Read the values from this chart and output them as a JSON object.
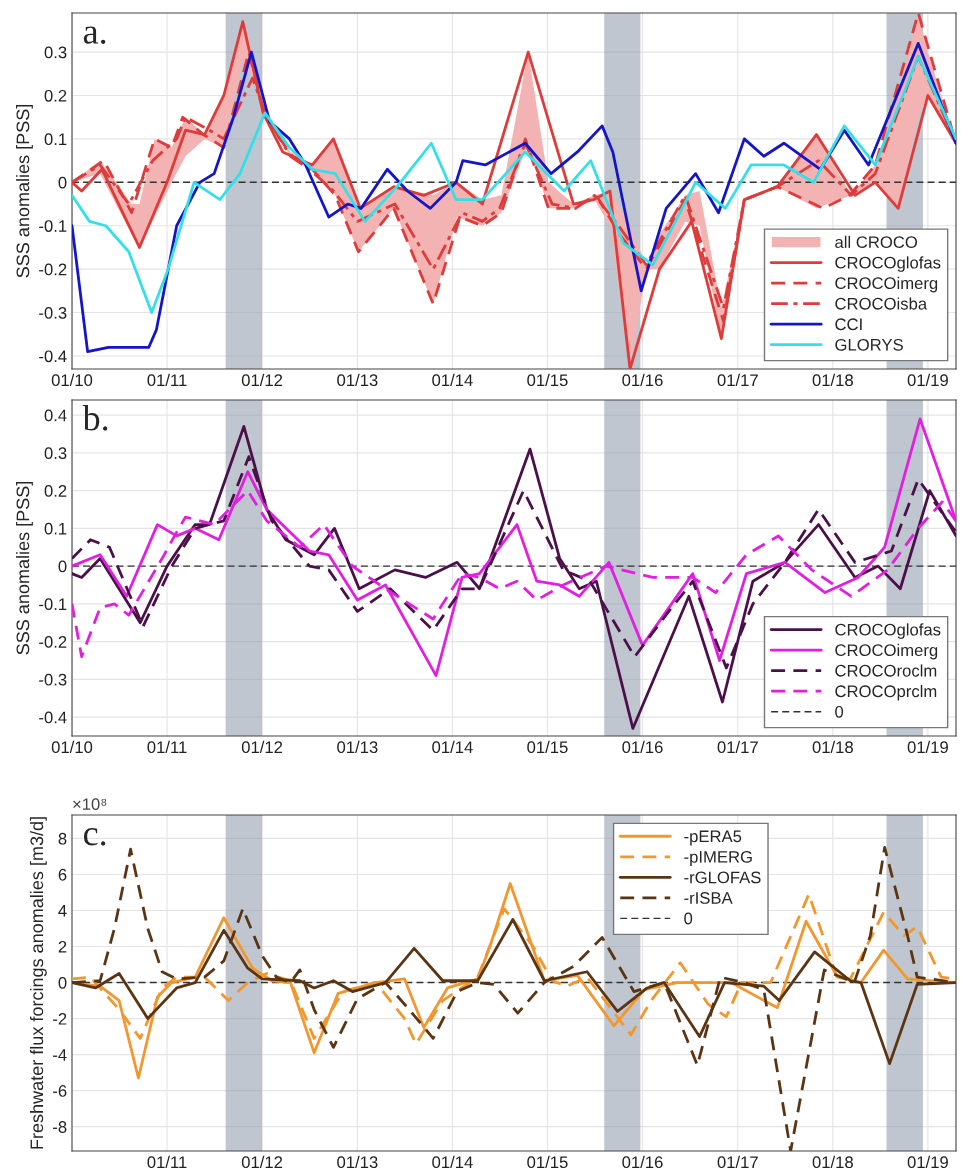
{
  "chart_data": [
    {
      "type": "line",
      "ylabel": "SSS anomalies [PSS]",
      "annotations": [
        "a."
      ],
      "xlim": [
        "2010-01-01",
        "2019-04-19"
      ],
      "ylim": [
        -0.43,
        0.39
      ],
      "xticks": [
        {
          "value": "2010-01-01",
          "label": "01/10"
        },
        {
          "value": "2011-01-01",
          "label": "01/11"
        },
        {
          "value": "2012-01-01",
          "label": "01/12"
        },
        {
          "value": "2013-01-01",
          "label": "01/13"
        },
        {
          "value": "2014-01-01",
          "label": "01/14"
        },
        {
          "value": "2015-01-01",
          "label": "01/15"
        },
        {
          "value": "2016-01-01",
          "label": "01/16"
        },
        {
          "value": "2017-01-01",
          "label": "01/17"
        },
        {
          "value": "2018-01-01",
          "label": "01/18"
        },
        {
          "value": "2019-01-01",
          "label": "01/19"
        }
      ],
      "yticks": [
        -0.4,
        -0.3,
        -0.2,
        -0.1,
        0,
        0.1,
        0.2,
        0.3
      ],
      "grid": true,
      "legend": "bottom right",
      "ref_lines": [
        {
          "axis": "y",
          "value": 0,
          "color": "#333333",
          "line_style": "dashed"
        }
      ],
      "bands": [
        {
          "axis": "x",
          "from": "2011-08-14",
          "to": "2012-01-01",
          "color": "#8c97a8"
        },
        {
          "axis": "x",
          "from": "2015-08-07",
          "to": "2015-12-24",
          "color": "#8c97a8"
        },
        {
          "axis": "x",
          "from": "2018-07-26",
          "to": "2018-12-13",
          "color": "#8c97a8"
        }
      ],
      "series": [
        {
          "name": "all CROCO",
          "color": "#f4b3b3",
          "values": [
            null,
            null,
            null,
            null,
            null,
            null,
            null,
            null,
            null,
            null,
            null,
            null,
            null,
            null,
            null,
            null,
            null,
            null,
            null,
            null,
            null,
            null,
            null,
            null,
            null,
            null,
            null,
            null,
            null,
            null,
            null,
            null,
            null,
            null,
            null,
            null,
            null,
            null,
            null,
            null,
            null
          ],
          "x": [
            "2010-01-01",
            "2010-04-19",
            "2010-08-18",
            "2010-09-17",
            "2010-11-14",
            "2011-01-19",
            "2011-03-13",
            "2011-05-25",
            "2011-08-07",
            "2011-10-19",
            "2011-11-25",
            "2012-01-12",
            "2012-04-19",
            "2012-07-12",
            "2012-10-01",
            "2013-01-05",
            "2013-05-21",
            "2013-10-19",
            "2014-01-19",
            "2014-04-26",
            "2014-07-08",
            "2014-10-19",
            "2015-01-05",
            "2015-04-11",
            "2015-07-01",
            "2015-08-29",
            "2015-11-14",
            "2016-01-15",
            "2016-03-06",
            "2016-06-13",
            "2016-08-07",
            "2016-10-30",
            "2017-01-26",
            "2017-06-02",
            "2017-10-30",
            "2018-03-13",
            "2018-06-13",
            "2018-09-09",
            "2018-11-25",
            "2019-01-01",
            "2019-04-19"
          ],
          "lower": [
            0.0,
            0.02,
            -0.12,
            -0.15,
            -0.08,
            0.0,
            0.06,
            0.1,
            0.08,
            0.28,
            0.24,
            0.15,
            0.06,
            0.03,
            -0.02,
            -0.16,
            -0.06,
            -0.28,
            -0.08,
            -0.1,
            -0.07,
            0.09,
            -0.06,
            -0.06,
            -0.04,
            -0.1,
            -0.43,
            -0.2,
            -0.2,
            -0.09,
            -0.1,
            -0.36,
            -0.04,
            -0.01,
            -0.06,
            -0.03,
            0.0,
            -0.06,
            0.15,
            0.2,
            0.09
          ],
          "upper": [
            0.0,
            0.05,
            -0.05,
            -0.05,
            0.1,
            0.08,
            0.15,
            0.11,
            0.2,
            0.37,
            0.3,
            0.16,
            0.07,
            0.04,
            0.1,
            -0.06,
            -0.01,
            -0.03,
            0.0,
            -0.04,
            -0.03,
            0.3,
            0.0,
            -0.05,
            -0.03,
            -0.02,
            -0.1,
            -0.19,
            -0.12,
            -0.03,
            -0.02,
            -0.29,
            -0.04,
            -0.01,
            0.11,
            -0.03,
            0.04,
            0.2,
            0.39,
            0.3,
            0.09
          ]
        },
        {
          "name": "CROCOglofas",
          "color": "#de3b3b",
          "line_style": "solid",
          "x": [
            "2010-01-01",
            "2010-02-07",
            "2010-04-26",
            "2010-09-17",
            "2011-01-01",
            "2011-03-13",
            "2011-05-25",
            "2011-08-07",
            "2011-10-19",
            "2012-01-05",
            "2012-03-20",
            "2012-07-12",
            "2012-10-01",
            "2013-01-12",
            "2013-05-21",
            "2013-09-13",
            "2014-01-15",
            "2014-04-26",
            "2014-10-19",
            "2015-04-11",
            "2015-06-27",
            "2015-08-29",
            "2015-11-14",
            "2016-03-06",
            "2016-07-08",
            "2016-10-30",
            "2017-01-26",
            "2017-06-02",
            "2017-10-30",
            "2018-03-27",
            "2018-06-13",
            "2018-09-09",
            "2019-01-01",
            "2019-04-19"
          ],
          "values": [
            0.0,
            -0.02,
            0.03,
            -0.15,
            0.0,
            0.12,
            0.11,
            0.2,
            0.37,
            0.16,
            0.07,
            0.04,
            0.1,
            -0.06,
            -0.01,
            -0.03,
            0.0,
            -0.05,
            0.3,
            -0.05,
            -0.04,
            -0.02,
            -0.43,
            -0.2,
            -0.09,
            -0.36,
            -0.04,
            -0.01,
            0.11,
            -0.03,
            0.0,
            -0.06,
            0.2,
            0.09
          ]
        },
        {
          "name": "CROCOimerg",
          "color": "#de3b3b",
          "line_style": "dashed",
          "x": [
            "2010-01-01",
            "2010-05-03",
            "2010-08-18",
            "2010-11-14",
            "2011-01-19",
            "2011-03-02",
            "2011-05-21",
            "2011-08-07",
            "2011-11-11",
            "2012-01-12",
            "2012-04-26",
            "2012-07-12",
            "2012-10-08",
            "2013-01-05",
            "2013-05-21",
            "2013-10-19",
            "2014-01-30",
            "2014-04-26",
            "2014-07-08",
            "2014-10-08",
            "2015-01-05",
            "2015-04-11",
            "2015-07-08",
            "2015-10-05",
            "2016-01-15",
            "2016-06-13",
            "2016-11-07",
            "2017-01-26",
            "2017-06-02",
            "2017-11-25",
            "2018-03-06",
            "2018-06-13",
            "2018-11-25",
            "2019-04-19"
          ],
          "values": [
            0.0,
            0.05,
            -0.07,
            0.1,
            0.08,
            0.15,
            0.11,
            0.08,
            0.3,
            0.15,
            0.06,
            0.03,
            -0.03,
            -0.16,
            -0.06,
            -0.28,
            -0.08,
            -0.1,
            -0.07,
            0.1,
            -0.06,
            -0.06,
            -0.03,
            -0.12,
            -0.2,
            -0.04,
            -0.32,
            -0.04,
            -0.01,
            -0.06,
            -0.03,
            0.04,
            0.39,
            0.09
          ]
        },
        {
          "name": "CROCOisba",
          "color": "#de3b3b",
          "line_style": "dashdot",
          "x": [
            "2010-01-01",
            "2010-04-19",
            "2010-08-07",
            "2010-11-07",
            "2011-02-07",
            "2011-03-13",
            "2011-06-13",
            "2011-08-07",
            "2011-11-25",
            "2012-01-19",
            "2012-04-19",
            "2012-07-01",
            "2012-10-01",
            "2013-01-01",
            "2013-05-25",
            "2013-10-19",
            "2014-02-07",
            "2014-04-26",
            "2014-07-01",
            "2014-10-08",
            "2015-01-19",
            "2015-04-19",
            "2015-07-01",
            "2015-10-01",
            "2016-01-15",
            "2016-06-13",
            "2016-11-07",
            "2017-01-26",
            "2017-06-02",
            "2017-11-07",
            "2018-03-13",
            "2018-06-13",
            "2018-11-25",
            "2019-04-19"
          ],
          "values": [
            0.0,
            0.04,
            -0.05,
            0.05,
            0.1,
            0.15,
            0.12,
            0.1,
            0.24,
            0.15,
            0.06,
            0.03,
            -0.02,
            -0.09,
            -0.05,
            -0.2,
            -0.07,
            -0.09,
            -0.06,
            0.09,
            -0.05,
            -0.06,
            -0.03,
            -0.1,
            -0.19,
            -0.03,
            -0.29,
            -0.04,
            -0.01,
            0.05,
            -0.03,
            0.02,
            0.29,
            0.09
          ]
        },
        {
          "name": "CCI",
          "color": "#1414c8",
          "line_style": "solid",
          "x": [
            "2010-01-01",
            "2010-03-02",
            "2010-05-21",
            "2010-10-23",
            "2010-11-21",
            "2011-02-07",
            "2011-05-07",
            "2011-07-01",
            "2011-09-13",
            "2011-11-21",
            "2012-01-30",
            "2012-04-15",
            "2012-06-16",
            "2012-09-13",
            "2012-11-25",
            "2013-01-15",
            "2013-04-26",
            "2013-07-12",
            "2013-10-08",
            "2014-01-15",
            "2014-02-10",
            "2014-05-07",
            "2014-10-08",
            "2015-01-15",
            "2015-04-26",
            "2015-07-30",
            "2015-09-09",
            "2015-12-27",
            "2016-04-01",
            "2016-07-23",
            "2016-10-19",
            "2017-01-26",
            "2017-04-11",
            "2017-06-27",
            "2017-11-14",
            "2018-02-14",
            "2018-05-18",
            "2018-11-25",
            "2019-04-19"
          ],
          "values": [
            -0.1,
            -0.39,
            -0.38,
            -0.38,
            -0.34,
            -0.1,
            0.0,
            0.02,
            0.15,
            0.3,
            0.14,
            0.1,
            0.04,
            -0.08,
            -0.05,
            -0.06,
            0.03,
            -0.02,
            -0.06,
            0.0,
            0.05,
            0.04,
            0.09,
            0.02,
            0.07,
            0.13,
            0.07,
            -0.25,
            -0.06,
            0.02,
            -0.07,
            0.1,
            0.06,
            0.09,
            0.03,
            0.12,
            0.04,
            0.32,
            0.09
          ]
        },
        {
          "name": "GLORYS",
          "color": "#33e0e8",
          "line_style": "solid",
          "x": [
            "2010-01-01",
            "2010-03-09",
            "2010-05-11",
            "2010-08-07",
            "2010-11-03",
            "2011-01-05",
            "2011-04-15",
            "2011-07-23",
            "2011-10-08",
            "2012-01-12",
            "2012-04-15",
            "2012-07-12",
            "2012-10-08",
            "2013-01-30",
            "2013-06-02",
            "2013-10-12",
            "2014-01-15",
            "2014-04-26",
            "2014-10-08",
            "2015-03-06",
            "2015-06-16",
            "2015-10-19",
            "2016-02-10",
            "2016-07-23",
            "2016-11-14",
            "2017-02-21",
            "2017-06-27",
            "2017-10-19",
            "2018-02-14",
            "2018-06-13",
            "2018-11-25",
            "2019-04-19"
          ],
          "values": [
            -0.03,
            -0.09,
            -0.1,
            -0.16,
            -0.3,
            -0.2,
            0.0,
            -0.04,
            0.02,
            0.16,
            0.08,
            0.03,
            0.02,
            -0.09,
            -0.01,
            0.09,
            -0.04,
            -0.04,
            0.07,
            -0.02,
            0.05,
            -0.14,
            -0.19,
            0.0,
            -0.06,
            0.04,
            0.04,
            0.0,
            0.13,
            0.04,
            0.29,
            0.1
          ]
        }
      ]
    },
    {
      "type": "line",
      "ylabel": "SSS anomalies [PSS]",
      "annotations": [
        "b."
      ],
      "xlim": [
        "2010-01-01",
        "2019-04-19"
      ],
      "ylim": [
        -0.45,
        0.44
      ],
      "xticks": [
        {
          "value": "2010-01-01",
          "label": "01/10"
        },
        {
          "value": "2011-01-01",
          "label": "01/11"
        },
        {
          "value": "2012-01-01",
          "label": "01/12"
        },
        {
          "value": "2013-01-01",
          "label": "01/13"
        },
        {
          "value": "2014-01-01",
          "label": "01/14"
        },
        {
          "value": "2015-01-01",
          "label": "01/15"
        },
        {
          "value": "2016-01-01",
          "label": "01/16"
        },
        {
          "value": "2017-01-01",
          "label": "01/17"
        },
        {
          "value": "2018-01-01",
          "label": "01/18"
        },
        {
          "value": "2019-01-01",
          "label": "01/19"
        }
      ],
      "yticks": [
        -0.4,
        -0.3,
        -0.2,
        -0.1,
        0,
        0.1,
        0.2,
        0.3,
        0.4
      ],
      "grid": true,
      "legend": "bottom right",
      "ref_lines": [
        {
          "axis": "y",
          "value": 0,
          "label": "0",
          "color": "#333333",
          "line_style": "dashed"
        }
      ],
      "bands": [
        {
          "axis": "x",
          "from": "2011-08-14",
          "to": "2012-01-01",
          "color": "#8c97a8"
        },
        {
          "axis": "x",
          "from": "2015-08-07",
          "to": "2015-12-24",
          "color": "#8c97a8"
        },
        {
          "axis": "x",
          "from": "2018-07-26",
          "to": "2018-12-13",
          "color": "#8c97a8"
        }
      ],
      "series": [
        {
          "name": "CROCOglofas",
          "color": "#4b1049",
          "line_style": "solid",
          "x": [
            "2010-01-01",
            "2010-02-07",
            "2010-04-19",
            "2010-09-20",
            "2011-01-01",
            "2011-04-19",
            "2011-06-13",
            "2011-10-23",
            "2012-01-19",
            "2012-04-01",
            "2012-07-19",
            "2012-10-05",
            "2013-01-08",
            "2013-05-25",
            "2013-09-20",
            "2014-01-19",
            "2014-04-15",
            "2014-10-26",
            "2015-02-17",
            "2015-05-03",
            "2015-07-08",
            "2015-11-25",
            "2016-06-27",
            "2016-11-03",
            "2017-02-28",
            "2017-07-01",
            "2017-11-07",
            "2018-03-27",
            "2018-06-24",
            "2018-09-17",
            "2019-01-08",
            "2019-04-19"
          ],
          "values": [
            -0.02,
            -0.03,
            0.02,
            -0.15,
            0.0,
            0.11,
            0.11,
            0.37,
            0.15,
            0.07,
            0.03,
            0.1,
            -0.06,
            -0.01,
            -0.03,
            0.01,
            -0.06,
            0.31,
            0.02,
            -0.06,
            -0.04,
            -0.43,
            -0.08,
            -0.36,
            -0.04,
            0.01,
            0.11,
            -0.03,
            0.0,
            -0.06,
            0.2,
            0.08
          ]
        },
        {
          "name": "CROCOimerg",
          "color": "#e11fe1",
          "line_style": "solid",
          "x": [
            "2010-01-01",
            "2010-04-19",
            "2010-07-30",
            "2010-11-25",
            "2011-02-07",
            "2011-04-19",
            "2011-07-19",
            "2011-11-07",
            "2012-01-19",
            "2012-07-01",
            "2012-09-13",
            "2013-01-01",
            "2013-04-19",
            "2013-10-30",
            "2014-02-07",
            "2014-04-15",
            "2014-09-06",
            "2014-11-21",
            "2015-02-17",
            "2015-05-03",
            "2015-08-25",
            "2016-01-01",
            "2016-07-12",
            "2016-10-23",
            "2017-02-03",
            "2017-07-01",
            "2017-12-02",
            "2018-04-08",
            "2018-07-19",
            "2018-12-02",
            "2019-04-19"
          ],
          "values": [
            0.0,
            0.03,
            -0.08,
            0.11,
            0.08,
            0.1,
            0.07,
            0.25,
            0.15,
            0.04,
            0.03,
            -0.09,
            -0.05,
            -0.29,
            -0.03,
            -0.02,
            0.11,
            -0.04,
            -0.05,
            -0.08,
            0.01,
            -0.21,
            -0.02,
            -0.25,
            -0.02,
            0.01,
            -0.07,
            -0.03,
            0.05,
            0.39,
            0.12
          ]
        },
        {
          "name": "CROCOroclm",
          "color": "#4b1049",
          "line_style": "dashed",
          "x": [
            "2010-01-01",
            "2010-03-13",
            "2010-05-25",
            "2010-10-01",
            "2011-01-19",
            "2011-04-19",
            "2011-08-07",
            "2011-11-11",
            "2012-02-07",
            "2012-07-01",
            "2012-09-13",
            "2013-01-01",
            "2013-05-07",
            "2013-10-19",
            "2014-02-07",
            "2014-04-15",
            "2014-10-01",
            "2015-03-02",
            "2015-06-13",
            "2015-12-02",
            "2016-04-11",
            "2016-07-12",
            "2016-11-18",
            "2017-02-28",
            "2017-07-01",
            "2017-11-07",
            "2018-03-27",
            "2018-08-14",
            "2018-11-25",
            "2019-04-19"
          ],
          "values": [
            0.02,
            0.07,
            0.05,
            -0.16,
            0.0,
            0.1,
            0.12,
            0.29,
            0.12,
            0.0,
            -0.01,
            -0.12,
            -0.06,
            -0.17,
            -0.06,
            -0.06,
            0.2,
            -0.01,
            -0.04,
            -0.24,
            -0.12,
            -0.04,
            -0.27,
            -0.1,
            0.01,
            0.15,
            0.01,
            0.04,
            0.23,
            0.09
          ]
        },
        {
          "name": "CROCOprclm",
          "color": "#e11fe1",
          "line_style": "dashed",
          "x": [
            "2010-01-01",
            "2010-02-07",
            "2010-04-19",
            "2010-06-13",
            "2010-08-07",
            "2010-12-13",
            "2011-02-07",
            "2011-03-13",
            "2011-07-01",
            "2011-11-07",
            "2012-01-19",
            "2012-05-25",
            "2012-08-25",
            "2012-12-13",
            "2013-04-19",
            "2013-10-19",
            "2014-02-07",
            "2014-04-15",
            "2014-07-01",
            "2014-09-06",
            "2014-11-21",
            "2015-03-02",
            "2015-08-14",
            "2016-02-10",
            "2016-07-12",
            "2016-10-08",
            "2017-02-03",
            "2017-06-06",
            "2017-10-12",
            "2018-03-13",
            "2018-07-30",
            "2018-11-25",
            "2019-02-25",
            "2019-04-19"
          ],
          "values": [
            -0.1,
            -0.24,
            -0.11,
            -0.1,
            -0.13,
            0.02,
            0.09,
            0.13,
            0.11,
            0.2,
            0.12,
            0.05,
            0.11,
            0.0,
            -0.06,
            -0.14,
            -0.02,
            -0.03,
            -0.06,
            -0.04,
            -0.09,
            -0.05,
            0.0,
            -0.03,
            -0.03,
            -0.07,
            0.03,
            0.08,
            -0.01,
            -0.08,
            -0.01,
            0.1,
            0.17,
            0.12
          ]
        }
      ]
    },
    {
      "type": "line",
      "ylabel": "Freshwater flux forcings anomalies [m3/d]",
      "annotations": [
        "c.",
        "×10⁸"
      ],
      "xlim": [
        "2010-01-01",
        "2019-04-19"
      ],
      "ylim": [
        -9.35,
        9.3
      ],
      "xticks": [
        {
          "value": "2011-01-01",
          "label": "01/11"
        },
        {
          "value": "2012-01-01",
          "label": "01/12"
        },
        {
          "value": "2013-01-01",
          "label": "01/13"
        },
        {
          "value": "2014-01-01",
          "label": "01/14"
        },
        {
          "value": "2015-01-01",
          "label": "01/15"
        },
        {
          "value": "2016-01-01",
          "label": "01/16"
        },
        {
          "value": "2017-01-01",
          "label": "01/17"
        },
        {
          "value": "2018-01-01",
          "label": "01/18"
        },
        {
          "value": "2019-01-01",
          "label": "01/19"
        }
      ],
      "yticks": [
        -8,
        -6,
        -4,
        -2,
        0,
        2,
        4,
        6,
        8
      ],
      "grid": true,
      "legend": "top",
      "ref_lines": [
        {
          "axis": "y",
          "value": 0,
          "label": "0",
          "color": "#333333",
          "line_style": "dashed"
        }
      ],
      "bands": [
        {
          "axis": "x",
          "from": "2011-08-14",
          "to": "2012-01-01",
          "color": "#8c97a8"
        },
        {
          "axis": "x",
          "from": "2015-08-07",
          "to": "2015-12-24",
          "color": "#8c97a8"
        },
        {
          "axis": "x",
          "from": "2018-07-26",
          "to": "2018-12-13",
          "color": "#8c97a8"
        }
      ],
      "series": [
        {
          "name": "-pERA5",
          "color": "#f2972e",
          "line_style": "solid",
          "x": [
            "2010-01-01",
            "2010-04-19",
            "2010-07-01",
            "2010-09-13",
            "2010-11-25",
            "2011-01-19",
            "2011-04-19",
            "2011-08-07",
            "2011-11-25",
            "2012-02-07",
            "2012-04-19",
            "2012-07-19",
            "2012-10-19",
            "2013-03-13",
            "2013-07-01",
            "2013-09-13",
            "2013-12-13",
            "2014-04-08",
            "2014-05-25",
            "2014-08-11",
            "2014-12-20",
            "2015-04-26",
            "2015-09-13",
            "2016-01-08",
            "2016-05-14",
            "2016-12-06",
            "2017-06-02",
            "2017-09-20",
            "2018-01-19",
            "2018-04-19",
            "2018-07-15",
            "2018-10-15",
            "2019-04-19"
          ],
          "values": [
            0.0,
            -0.2,
            -1.0,
            -5.3,
            -0.8,
            0.0,
            0.3,
            3.6,
            0.8,
            0.1,
            0.0,
            -3.9,
            -0.6,
            0.0,
            0.2,
            -2.5,
            -0.3,
            0.2,
            2.0,
            5.5,
            0.1,
            0.4,
            -2.4,
            -0.4,
            0.0,
            0.0,
            -1.4,
            3.4,
            0.3,
            0.0,
            1.8,
            0.2,
            0.0
          ]
        },
        {
          "name": "-pIMERG",
          "color": "#f2972e",
          "line_style": "dashed",
          "x": [
            "2010-01-01",
            "2010-03-13",
            "2010-07-01",
            "2010-09-20",
            "2010-12-13",
            "2011-02-07",
            "2011-05-25",
            "2011-08-25",
            "2011-11-07",
            "2012-01-19",
            "2012-04-19",
            "2012-07-19",
            "2012-11-07",
            "2013-03-13",
            "2013-07-01",
            "2013-08-14",
            "2013-11-25",
            "2014-04-08",
            "2014-07-19",
            "2014-11-07",
            "2015-01-19",
            "2015-03-17",
            "2015-06-02",
            "2015-11-18",
            "2016-02-03",
            "2016-05-25",
            "2016-09-09",
            "2016-11-18",
            "2017-01-15",
            "2017-05-07",
            "2017-10-01",
            "2018-01-19",
            "2018-03-09",
            "2018-07-15",
            "2018-10-01",
            "2018-11-21",
            "2019-02-21",
            "2019-04-19"
          ],
          "values": [
            0.2,
            0.3,
            -1.5,
            -3.1,
            -0.3,
            0.3,
            0.3,
            -1.0,
            0.0,
            0.5,
            0.1,
            -3.1,
            -0.5,
            0.0,
            -2.0,
            -3.4,
            -1.0,
            0.3,
            4.1,
            2.0,
            0.1,
            -0.2,
            0.3,
            -2.9,
            -1.0,
            1.1,
            -1.2,
            -1.9,
            0.0,
            0.0,
            4.9,
            0.2,
            0.2,
            3.9,
            2.6,
            3.1,
            0.3,
            0.2
          ]
        },
        {
          "name": "-rGLOFAS",
          "color": "#5a3413",
          "line_style": "solid",
          "x": [
            "2010-01-01",
            "2010-04-01",
            "2010-07-01",
            "2010-10-19",
            "2011-02-07",
            "2011-04-19",
            "2011-08-07",
            "2011-11-07",
            "2012-01-01",
            "2012-05-25",
            "2012-07-19",
            "2012-10-01",
            "2012-12-13",
            "2013-04-19",
            "2013-08-07",
            "2013-11-25",
            "2014-04-08",
            "2014-08-21",
            "2014-12-20",
            "2015-06-02",
            "2015-09-27",
            "2016-01-19",
            "2016-03-24",
            "2016-08-07",
            "2016-11-11",
            "2017-04-11",
            "2017-06-09",
            "2017-10-23",
            "2018-03-09",
            "2018-04-19",
            "2018-08-07",
            "2018-11-21",
            "2019-04-19"
          ],
          "values": [
            0.0,
            -0.3,
            0.5,
            -2.0,
            -0.3,
            0.0,
            2.9,
            0.8,
            0.2,
            0.1,
            -0.3,
            0.1,
            -0.5,
            0.0,
            1.9,
            0.1,
            0.1,
            3.5,
            0.1,
            0.6,
            -1.6,
            -0.3,
            0.0,
            -3.0,
            0.0,
            -0.2,
            -1.0,
            1.7,
            0.1,
            0.0,
            -4.5,
            -0.1,
            0.0
          ]
        },
        {
          "name": "-rISBA",
          "color": "#5a3413",
          "line_style": "dashed",
          "x": [
            "2010-01-01",
            "2010-04-19",
            "2010-06-13",
            "2010-08-14",
            "2010-10-19",
            "2010-12-13",
            "2011-02-07",
            "2011-05-25",
            "2011-08-07",
            "2011-10-19",
            "2012-01-01",
            "2012-02-25",
            "2012-04-19",
            "2012-05-25",
            "2012-07-19",
            "2012-10-01",
            "2013-01-01",
            "2013-04-19",
            "2013-07-19",
            "2013-10-19",
            "2014-01-19",
            "2014-04-08",
            "2014-06-09",
            "2014-09-09",
            "2014-12-20",
            "2015-04-11",
            "2015-07-30",
            "2015-11-29",
            "2016-03-24",
            "2016-07-30",
            "2016-10-26",
            "2017-01-26",
            "2017-04-11",
            "2017-07-23",
            "2017-11-29",
            "2018-03-24",
            "2018-05-25",
            "2018-07-19",
            "2018-10-15",
            "2018-11-21",
            "2019-04-19"
          ],
          "values": [
            0.0,
            0.1,
            3.0,
            7.4,
            3.0,
            0.6,
            0.2,
            0.3,
            1.2,
            4.1,
            1.5,
            0.3,
            0.0,
            0.7,
            -1.5,
            -3.6,
            -0.9,
            0.0,
            -1.5,
            -3.1,
            -0.5,
            0.0,
            -0.1,
            -1.7,
            0.0,
            0.9,
            2.5,
            -0.5,
            0.0,
            -4.6,
            0.3,
            0.0,
            -0.4,
            -9.35,
            0.7,
            0.0,
            2.6,
            7.5,
            2.6,
            0.3,
            0.0
          ]
        }
      ]
    }
  ]
}
